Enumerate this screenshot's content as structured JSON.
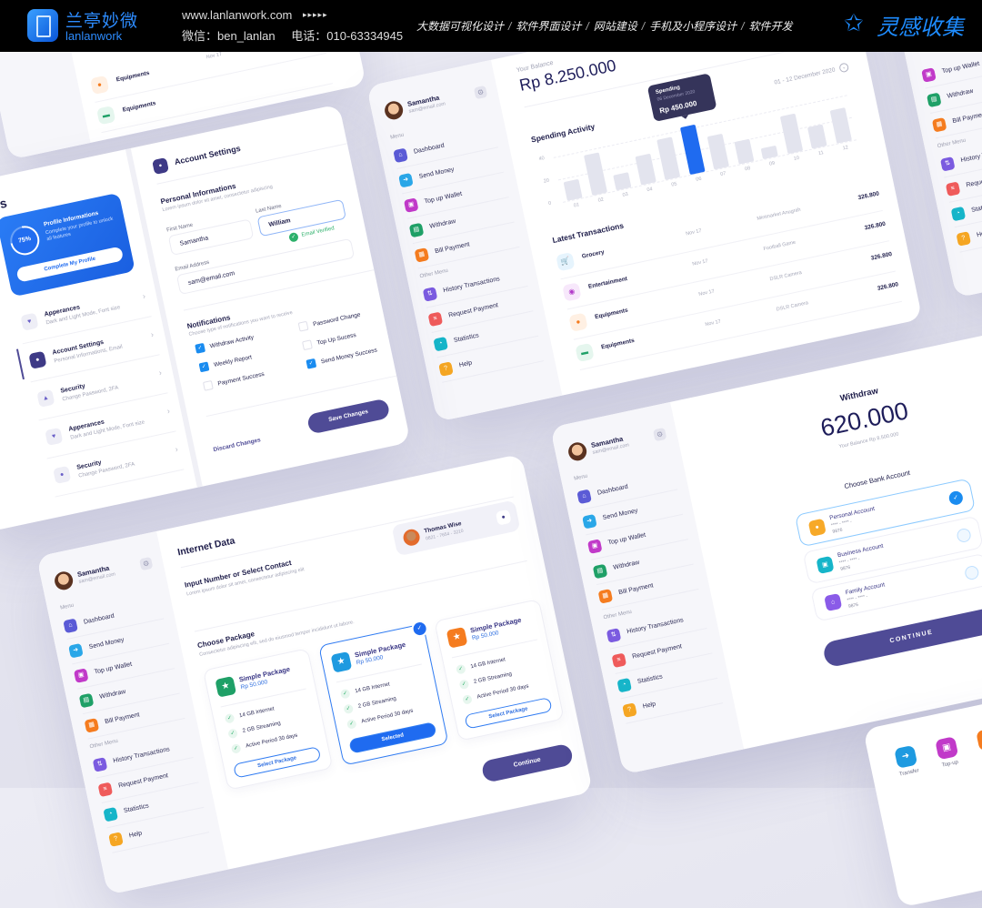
{
  "header": {
    "logo_cn": "兰亭妙微",
    "logo_en": "lanlanwork",
    "url": "www.lanlanwork.com",
    "arrows": "▸▸▸▸▸",
    "wechat": "微信：ben_lanlan",
    "phone": "电话：010-63334945",
    "services": [
      "大数据可视化设计",
      "软件界面设计",
      "网站建设",
      "手机及小程序设计",
      "软件开发"
    ],
    "separator": "/",
    "brand": "灵感收集",
    "brand_icon": "star-outline-icon"
  },
  "colors": {
    "primary": "#4f4b96",
    "accent_blue": "#1f6bf0",
    "text": "#1e1d4a",
    "muted": "#a3a5b7"
  },
  "sidebar": {
    "name": "Samantha",
    "email": "sam@email.com",
    "menu_label": "Menu",
    "menu": [
      {
        "label": "Dashboard",
        "icon": "home-icon",
        "glyph": "⌂",
        "color": "#5b5bd6"
      },
      {
        "label": "Send Money",
        "icon": "send-icon",
        "glyph": "➜",
        "color": "#2aa7e8"
      },
      {
        "label": "Top up Wallet",
        "icon": "wallet-icon",
        "glyph": "▣",
        "color": "#c13ac9"
      },
      {
        "label": "Withdraw",
        "icon": "withdraw-icon",
        "glyph": "▤",
        "color": "#1fa067"
      },
      {
        "label": "Bill Payment",
        "icon": "bill-icon",
        "glyph": "▦",
        "color": "#f57c1f"
      }
    ],
    "other_label": "Other Menu",
    "other": [
      {
        "label": "History Transactions",
        "icon": "history-icon",
        "glyph": "⇅",
        "color": "#7b5be0"
      },
      {
        "label": "Request Payment",
        "icon": "request-icon",
        "glyph": "≡",
        "color": "#ef5b5b"
      },
      {
        "label": "Statistics",
        "icon": "statistics-icon",
        "glyph": "◔",
        "color": "#16b5c9"
      },
      {
        "label": "Help",
        "icon": "help-icon",
        "glyph": "?",
        "color": "#f5a623"
      }
    ]
  },
  "dashboard": {
    "balance_label": "Your Balance",
    "balance": "Rp 8.250.000",
    "date_range": "01 - 12 December 2020",
    "spending_title": "Spending Activity",
    "tooltip": {
      "title": "Spending",
      "date": "06 December 2020",
      "amount": "Rp 450.000"
    },
    "transactions_title": "Latest Transactions",
    "transactions": [
      {
        "category": "Grocery",
        "date": "Nov 17",
        "description": "Minimarket Anugrah",
        "amount": "326.800",
        "icon": "cart-icon",
        "glyph": "🛒",
        "color": "#1a9ae8",
        "bg": "#e6f4fd"
      },
      {
        "category": "Entertainment",
        "date": "Nov 17",
        "description": "Football Game",
        "amount": "326.800",
        "icon": "game-icon",
        "glyph": "◉",
        "color": "#b23bc9",
        "bg": "#f7e8fb"
      },
      {
        "category": "Equipments",
        "date": "Nov 17",
        "description": "DSLR Camera",
        "amount": "326.800",
        "icon": "camera-icon",
        "glyph": "●",
        "color": "#f57c1f",
        "bg": "#fff0e3"
      },
      {
        "category": "Equipments",
        "date": "Nov 17",
        "description": "DSLR Camera",
        "amount": "326.800",
        "icon": "equipment-icon",
        "glyph": "▬",
        "color": "#1fa067",
        "bg": "#e5f6ee"
      }
    ]
  },
  "chart_data": {
    "type": "bar",
    "title": "Spending Activity",
    "categories": [
      "01",
      "02",
      "03",
      "04",
      "05",
      "06",
      "07",
      "08",
      "09",
      "10",
      "11",
      "12"
    ],
    "values": [
      17,
      36,
      14,
      26,
      36,
      43,
      30,
      20,
      10,
      34,
      19,
      30
    ],
    "yticks": [
      0,
      20,
      40
    ],
    "ylim": [
      0,
      45
    ],
    "highlighted": "06",
    "grid": true
  },
  "settings": {
    "title": "Settings",
    "profile_card": {
      "percent": 75,
      "percent_label": "75%",
      "title": "Profile Informations",
      "text": "Complete your profile to unlock all features",
      "button": "Complete My Profile"
    },
    "items": [
      {
        "title": "Apperances",
        "subtitle": "Dark and Light Mode, Font size",
        "icon": "heart-icon",
        "glyph": "♥",
        "active": false
      },
      {
        "title": "Account Settings",
        "subtitle": "Personal Informations, Email",
        "icon": "user-icon",
        "glyph": "●",
        "active": true
      },
      {
        "title": "Security",
        "subtitle": "Change Password, 2FA",
        "icon": "lock-icon",
        "glyph": "▲",
        "active": false
      },
      {
        "title": "Apperances",
        "subtitle": "Dark and Light Mode, Font size",
        "icon": "heart-icon",
        "glyph": "♥",
        "active": false
      },
      {
        "title": "Security",
        "subtitle": "Change Password, 2FA",
        "icon": "lock-icon",
        "glyph": "●",
        "active": false
      }
    ]
  },
  "account": {
    "title": "Account Settings",
    "personal_title": "Personal Informations",
    "personal_desc": "Lorem ipsum dolor sit amet, consectetur adipiscing",
    "first_name_label": "First Name",
    "first_name": "Samantha",
    "last_name_label": "Last Name",
    "last_name": "William",
    "email_label": "Email Address",
    "email": "sam@email.com",
    "email_status": "Email Verified",
    "notifications_title": "Notifications",
    "notifications_desc": "Choose type of notifications you want to receive",
    "notifications": [
      {
        "label": "Withdraw Activity",
        "checked": true
      },
      {
        "label": "Password Change",
        "checked": false
      },
      {
        "label": "Weekly Report",
        "checked": true
      },
      {
        "label": "Top Up Sucess",
        "checked": false
      },
      {
        "label": "Payment Success",
        "checked": false
      },
      {
        "label": "Send Money Success",
        "checked": true
      }
    ],
    "discard": "Discard Changes",
    "save": "Save Changes"
  },
  "internet": {
    "title": "Internet Data",
    "contact": {
      "name": "Thomas Wise",
      "phone": "0821 - 7654 - 3210"
    },
    "input_title": "Input Number or Select Contact",
    "input_desc": "Lorem ipsum dolor sit amet, consectetur adipiscing elit",
    "choose_title": "Choose Package",
    "choose_desc": "Consectetur adipiscing elit, sed do eiusmod tempor incididunt ut labore.",
    "packages": [
      {
        "title": "Simple Package",
        "price": "Rp 50.000",
        "features": [
          "14 GB Internet",
          "2 GB Streaming",
          "Active Period 30 days"
        ],
        "button": "Select Package",
        "selected": false,
        "color": "#1fa067"
      },
      {
        "title": "Simple Package",
        "price": "Rp 50.000",
        "features": [
          "14 GB Internet",
          "2 GB Streaming",
          "Active Period 30 days"
        ],
        "button": "Selected",
        "selected": true,
        "color": "#1e9ae0"
      },
      {
        "title": "Simple Package",
        "price": "Rp 50.000",
        "features": [
          "14 GB Internet",
          "2 GB Streaming",
          "Active Period 30 days"
        ],
        "button": "Select Package",
        "selected": false,
        "color": "#f57c1f"
      }
    ],
    "continue": "Continue"
  },
  "withdraw": {
    "title": "Withdraw",
    "amount": "620.000",
    "balance": "Your Balance Rp 8.500.000",
    "choose_title": "Choose Bank Account",
    "accounts": [
      {
        "name": "Personal Account",
        "masked": "**** - **** -",
        "digits": "9876",
        "icon": "user-icon",
        "glyph": "●",
        "color": "#f7a928",
        "selected": true
      },
      {
        "name": "Business Account",
        "masked": "**** - **** -",
        "digits": "9876",
        "icon": "briefcase-icon",
        "glyph": "▣",
        "color": "#16b5c9",
        "selected": false
      },
      {
        "name": "Family Account",
        "masked": "**** - **** -",
        "digits": "9876",
        "icon": "home-icon",
        "glyph": "⌂",
        "color": "#8a5be8",
        "selected": false
      }
    ],
    "continue": "CONTINUE"
  },
  "partial_transactions": [
    {
      "category": "Equipments",
      "date": "Nov 17",
      "icon": "camera-icon",
      "glyph": "●",
      "color": "#f57c1f",
      "bg": "#fff0e3"
    },
    {
      "category": "Equipments",
      "date": "",
      "icon": "equipment-icon",
      "glyph": "▬",
      "color": "#1fa067",
      "bg": "#e5f6ee"
    }
  ],
  "quick_actions": [
    {
      "label": "Transfer",
      "icon": "transfer-icon",
      "glyph": "➜",
      "color": "#1e9ae0"
    },
    {
      "label": "Top-up",
      "icon": "topup-icon",
      "glyph": "▣",
      "color": "#c13ac9"
    },
    {
      "label": "",
      "icon": "bill-icon",
      "glyph": "▦",
      "color": "#f57c1f"
    }
  ]
}
